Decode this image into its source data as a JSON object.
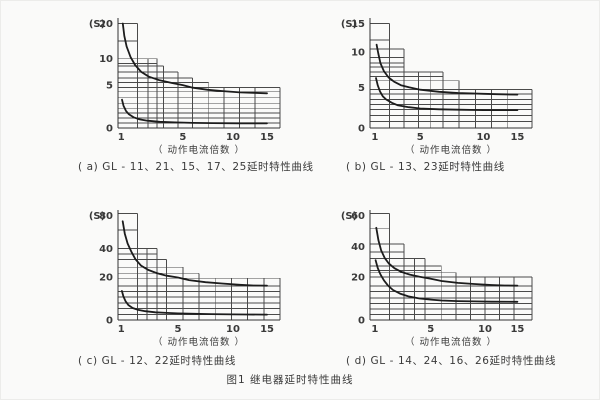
{
  "figure_caption": "图1  继电器延时特性曲线",
  "colors": {
    "background": "#fafaf9",
    "grid": "#4a4a4a",
    "curve": "#1c1c1c",
    "text": "#3a3a3a"
  },
  "chart_data": [
    {
      "key": "a",
      "type": "line",
      "caption": "( a) GL - 11、21、15、17、25延时特性曲线",
      "ylabel": "(S)",
      "xlabel": "（ 动作电流倍数 ）",
      "x_ticks": [
        {
          "label": "1",
          "v": 1,
          "f": 0.02
        },
        {
          "label": "5",
          "v": 5,
          "f": 0.4
        },
        {
          "label": "10",
          "v": 10,
          "f": 0.71
        },
        {
          "label": "15",
          "v": 15,
          "f": 0.92
        }
      ],
      "y_ticks": [
        {
          "label": "0",
          "v": 0,
          "f": 0.0
        },
        {
          "label": "5",
          "v": 5,
          "f": 0.39
        },
        {
          "label": "10",
          "v": 10,
          "f": 0.63
        },
        {
          "label": "20",
          "v": 20,
          "f": 0.95
        }
      ],
      "series": [
        {
          "name": "upper-limit-curve",
          "points": [
            [
              1.1,
              20
            ],
            [
              1.2,
              16.5
            ],
            [
              1.35,
              13.5
            ],
            [
              1.6,
              10.5
            ],
            [
              1.9,
              8.8
            ],
            [
              2.3,
              7.5
            ],
            [
              2.8,
              6.6
            ],
            [
              3.5,
              5.9
            ],
            [
              4.3,
              5.4
            ],
            [
              5,
              5.0
            ],
            [
              6,
              4.7
            ],
            [
              7.5,
              4.45
            ],
            [
              9,
              4.3
            ],
            [
              11,
              4.15
            ],
            [
              13,
              4.1
            ],
            [
              15,
              4.05
            ]
          ]
        },
        {
          "name": "lower-limit-curve",
          "points": [
            [
              1.05,
              3.3
            ],
            [
              1.15,
              2.6
            ],
            [
              1.3,
              2.0
            ],
            [
              1.5,
              1.6
            ],
            [
              1.8,
              1.25
            ],
            [
              2.2,
              1.0
            ],
            [
              2.7,
              0.85
            ],
            [
              3.5,
              0.72
            ],
            [
              4.5,
              0.65
            ],
            [
              6,
              0.6
            ],
            [
              8,
              0.57
            ],
            [
              11,
              0.55
            ],
            [
              15,
              0.55
            ]
          ]
        }
      ],
      "grid": {
        "boxes": [
          {
            "x1": 0.12,
            "top": 0.95
          },
          {
            "x1": 0.24,
            "top": 0.63
          },
          {
            "x1": 0.28,
            "top": 0.565
          },
          {
            "x1": 0.37,
            "top": 0.51
          },
          {
            "x1": 0.46,
            "top": 0.455
          },
          {
            "x1": 0.56,
            "top": 0.415
          },
          {
            "x1": 1.0,
            "top": 0.37
          }
        ],
        "hlines": [
          {
            "y": 0.79,
            "x1": 0.12
          },
          {
            "y": 0.585,
            "x1": 0.24
          },
          {
            "y": 0.33,
            "x1": 1.0
          },
          {
            "y": 0.275,
            "x1": 1.0
          },
          {
            "y": 0.225,
            "x1": 1.0
          },
          {
            "y": 0.18,
            "x1": 1.0
          },
          {
            "y": 0.135,
            "x1": 1.0
          },
          {
            "y": 0.09,
            "x1": 1.0
          },
          {
            "y": 0.045,
            "x1": 1.0
          }
        ],
        "vlines": [
          {
            "x": 0.185,
            "y1": 0.63
          },
          {
            "x": 0.655,
            "y1": 0.37
          },
          {
            "x": 0.75,
            "y1": 0.37
          },
          {
            "x": 0.845,
            "y1": 0.37
          }
        ]
      }
    },
    {
      "key": "b",
      "type": "line",
      "caption": "( b) GL - 13、23延时特性曲线",
      "ylabel": "(S)",
      "xlabel": "（ 动作电流倍数 ）",
      "x_ticks": [
        {
          "label": "1",
          "v": 1,
          "f": 0.03
        },
        {
          "label": "5",
          "v": 5,
          "f": 0.31
        },
        {
          "label": "10",
          "v": 10,
          "f": 0.7
        },
        {
          "label": "15",
          "v": 15,
          "f": 0.91
        }
      ],
      "y_ticks": [
        {
          "label": "0",
          "v": 0,
          "f": 0.0
        },
        {
          "label": "5",
          "v": 5,
          "f": 0.37
        },
        {
          "label": "10",
          "v": 10,
          "f": 0.69
        },
        {
          "label": "15",
          "v": 15,
          "f": 0.95
        }
      ],
      "series": [
        {
          "name": "upper-limit-curve",
          "points": [
            [
              1.15,
              11.3
            ],
            [
              1.3,
              9.8
            ],
            [
              1.5,
              8.4
            ],
            [
              1.8,
              7.3
            ],
            [
              2.2,
              6.4
            ],
            [
              2.7,
              5.8
            ],
            [
              3.3,
              5.3
            ],
            [
              4,
              5.0
            ],
            [
              5,
              4.7
            ],
            [
              6.5,
              4.45
            ],
            [
              8,
              4.3
            ],
            [
              10,
              4.2
            ],
            [
              12,
              4.15
            ],
            [
              15,
              4.1
            ]
          ]
        },
        {
          "name": "lower-limit-curve",
          "points": [
            [
              1.1,
              6.3
            ],
            [
              1.25,
              5.3
            ],
            [
              1.45,
              4.5
            ],
            [
              1.7,
              3.9
            ],
            [
              2,
              3.5
            ],
            [
              2.5,
              3.1
            ],
            [
              3,
              2.8
            ],
            [
              4,
              2.55
            ],
            [
              5,
              2.4
            ],
            [
              6.5,
              2.3
            ],
            [
              8,
              2.25
            ],
            [
              10,
              2.2
            ],
            [
              15,
              2.2
            ]
          ]
        }
      ],
      "grid": {
        "boxes": [
          {
            "x1": 0.12,
            "top": 0.95
          },
          {
            "x1": 0.21,
            "top": 0.72
          },
          {
            "x1": 0.45,
            "top": 0.51
          },
          {
            "x1": 0.55,
            "top": 0.43
          },
          {
            "x1": 1.0,
            "top": 0.35
          }
        ],
        "hlines": [
          {
            "y": 0.8,
            "x1": 0.12
          },
          {
            "y": 0.64,
            "x1": 0.21
          },
          {
            "y": 0.59,
            "x1": 0.21
          },
          {
            "y": 0.555,
            "x1": 0.21
          },
          {
            "y": 0.47,
            "x1": 0.45
          },
          {
            "y": 0.31,
            "x1": 1.0
          },
          {
            "y": 0.26,
            "x1": 1.0
          },
          {
            "y": 0.215,
            "x1": 1.0
          },
          {
            "y": 0.17,
            "x1": 1.0
          },
          {
            "y": 0.115,
            "x1": 1.0
          },
          {
            "y": 0.06,
            "x1": 1.0
          }
        ],
        "vlines": [
          {
            "x": 0.3,
            "y1": 0.51
          },
          {
            "x": 0.375,
            "y1": 0.51
          },
          {
            "x": 0.65,
            "y1": 0.35
          },
          {
            "x": 0.75,
            "y1": 0.35
          },
          {
            "x": 0.85,
            "y1": 0.35
          }
        ]
      }
    },
    {
      "key": "c",
      "type": "line",
      "caption": "( c) GL - 12、22延时特性曲线",
      "ylabel": "(S)",
      "xlabel": "（ 动作电流倍数 ）",
      "x_ticks": [
        {
          "label": "1",
          "v": 1,
          "f": 0.02
        },
        {
          "label": "5",
          "v": 5,
          "f": 0.37
        },
        {
          "label": "10",
          "v": 10,
          "f": 0.71
        },
        {
          "label": "15",
          "v": 15,
          "f": 0.92
        }
      ],
      "y_ticks": [
        {
          "label": "0",
          "v": 0,
          "f": 0.0
        },
        {
          "label": "20",
          "v": 20,
          "f": 0.39
        },
        {
          "label": "40",
          "v": 40,
          "f": 0.65
        },
        {
          "label": "80",
          "v": 80,
          "f": 0.95
        }
      ],
      "series": [
        {
          "name": "upper-limit-curve",
          "points": [
            [
              1.1,
              73
            ],
            [
              1.25,
              58
            ],
            [
              1.45,
              46
            ],
            [
              1.7,
              38
            ],
            [
              2,
              32.5
            ],
            [
              2.4,
              28
            ],
            [
              2.9,
              25
            ],
            [
              3.5,
              22.8
            ],
            [
              4.2,
              21
            ],
            [
              5,
              19.8
            ],
            [
              6,
              18.6
            ],
            [
              7.5,
              17.6
            ],
            [
              9,
              17
            ],
            [
              11,
              16.4
            ],
            [
              13,
              16.1
            ],
            [
              15,
              16
            ]
          ]
        },
        {
          "name": "lower-limit-curve",
          "points": [
            [
              1.05,
              13.5
            ],
            [
              1.15,
              11
            ],
            [
              1.3,
              8.8
            ],
            [
              1.5,
              7
            ],
            [
              1.8,
              5.6
            ],
            [
              2.2,
              4.7
            ],
            [
              2.7,
              4.1
            ],
            [
              3.4,
              3.6
            ],
            [
              4.2,
              3.3
            ],
            [
              5,
              3.1
            ],
            [
              6.5,
              2.9
            ],
            [
              8,
              2.75
            ],
            [
              10,
              2.6
            ],
            [
              12,
              2.55
            ],
            [
              15,
              2.5
            ]
          ]
        }
      ],
      "grid": {
        "boxes": [
          {
            "x1": 0.12,
            "top": 0.97
          },
          {
            "x1": 0.24,
            "top": 0.65
          },
          {
            "x1": 0.3,
            "top": 0.55
          },
          {
            "x1": 0.4,
            "top": 0.48
          },
          {
            "x1": 0.5,
            "top": 0.425
          },
          {
            "x1": 1.0,
            "top": 0.38
          }
        ],
        "hlines": [
          {
            "y": 0.82,
            "x1": 0.12
          },
          {
            "y": 0.6,
            "x1": 0.24
          },
          {
            "y": 0.31,
            "x1": 1.0
          },
          {
            "y": 0.26,
            "x1": 1.0
          },
          {
            "y": 0.21,
            "x1": 1.0
          },
          {
            "y": 0.155,
            "x1": 1.0
          },
          {
            "y": 0.105,
            "x1": 1.0
          },
          {
            "y": 0.05,
            "x1": 1.0
          }
        ],
        "vlines": [
          {
            "x": 0.18,
            "y1": 0.65
          },
          {
            "x": 0.6,
            "y1": 0.38
          },
          {
            "x": 0.7,
            "y1": 0.38
          },
          {
            "x": 0.8,
            "y1": 0.38
          },
          {
            "x": 0.9,
            "y1": 0.38
          }
        ]
      }
    },
    {
      "key": "d",
      "type": "line",
      "caption": "( d) GL - 14、24、16、26延时特性曲线",
      "ylabel": "(S)",
      "xlabel": "（ 动作电流倍数 ）",
      "x_ticks": [
        {
          "label": "1",
          "v": 1,
          "f": 0.03
        },
        {
          "label": "5",
          "v": 5,
          "f": 0.375
        },
        {
          "label": "10",
          "v": 10,
          "f": 0.71
        },
        {
          "label": "15",
          "v": 15,
          "f": 0.91
        }
      ],
      "y_ticks": [
        {
          "label": "0",
          "v": 0,
          "f": 0.0
        },
        {
          "label": "20",
          "v": 20,
          "f": 0.39
        },
        {
          "label": "40",
          "v": 40,
          "f": 0.67
        },
        {
          "label": "60",
          "v": 60,
          "f": 0.95
        }
      ],
      "series": [
        {
          "name": "upper-limit-curve",
          "points": [
            [
              1.1,
              52
            ],
            [
              1.25,
              44
            ],
            [
              1.45,
              37.5
            ],
            [
              1.7,
              32.5
            ],
            [
              2,
              28.8
            ],
            [
              2.4,
              25.8
            ],
            [
              2.9,
              23.4
            ],
            [
              3.5,
              21.6
            ],
            [
              4.2,
              20.2
            ],
            [
              5,
              19.2
            ],
            [
              6,
              18.2
            ],
            [
              7.5,
              17.3
            ],
            [
              9,
              16.8
            ],
            [
              11,
              16.3
            ],
            [
              13,
              16.1
            ],
            [
              15,
              16
            ]
          ]
        },
        {
          "name": "lower-limit-curve",
          "points": [
            [
              1.05,
              31
            ],
            [
              1.2,
              26
            ],
            [
              1.4,
              21.8
            ],
            [
              1.65,
              18.5
            ],
            [
              1.95,
              16
            ],
            [
              2.3,
              14
            ],
            [
              2.8,
              12.3
            ],
            [
              3.4,
              11
            ],
            [
              4.2,
              10
            ],
            [
              5,
              9.5
            ],
            [
              6,
              9.1
            ],
            [
              7.5,
              8.8
            ],
            [
              9,
              8.65
            ],
            [
              11,
              8.55
            ],
            [
              15,
              8.5
            ]
          ]
        }
      ],
      "grid": {
        "boxes": [
          {
            "x1": 0.12,
            "top": 0.97
          },
          {
            "x1": 0.21,
            "top": 0.69
          },
          {
            "x1": 0.34,
            "top": 0.56
          },
          {
            "x1": 0.44,
            "top": 0.49
          },
          {
            "x1": 0.53,
            "top": 0.43
          },
          {
            "x1": 1.0,
            "top": 0.39
          }
        ],
        "hlines": [
          {
            "y": 0.83,
            "x1": 0.12
          },
          {
            "y": 0.62,
            "x1": 0.21
          },
          {
            "y": 0.45,
            "x1": 0.44
          },
          {
            "y": 0.31,
            "x1": 1.0
          },
          {
            "y": 0.26,
            "x1": 1.0
          },
          {
            "y": 0.2,
            "x1": 1.0
          },
          {
            "y": 0.15,
            "x1": 1.0
          },
          {
            "y": 0.1,
            "x1": 1.0
          },
          {
            "y": 0.05,
            "x1": 1.0
          }
        ],
        "vlines": [
          {
            "x": 0.275,
            "y1": 0.56
          },
          {
            "x": 0.62,
            "y1": 0.39
          },
          {
            "x": 0.71,
            "y1": 0.39
          },
          {
            "x": 0.8,
            "y1": 0.39
          },
          {
            "x": 0.89,
            "y1": 0.39
          }
        ]
      }
    }
  ]
}
